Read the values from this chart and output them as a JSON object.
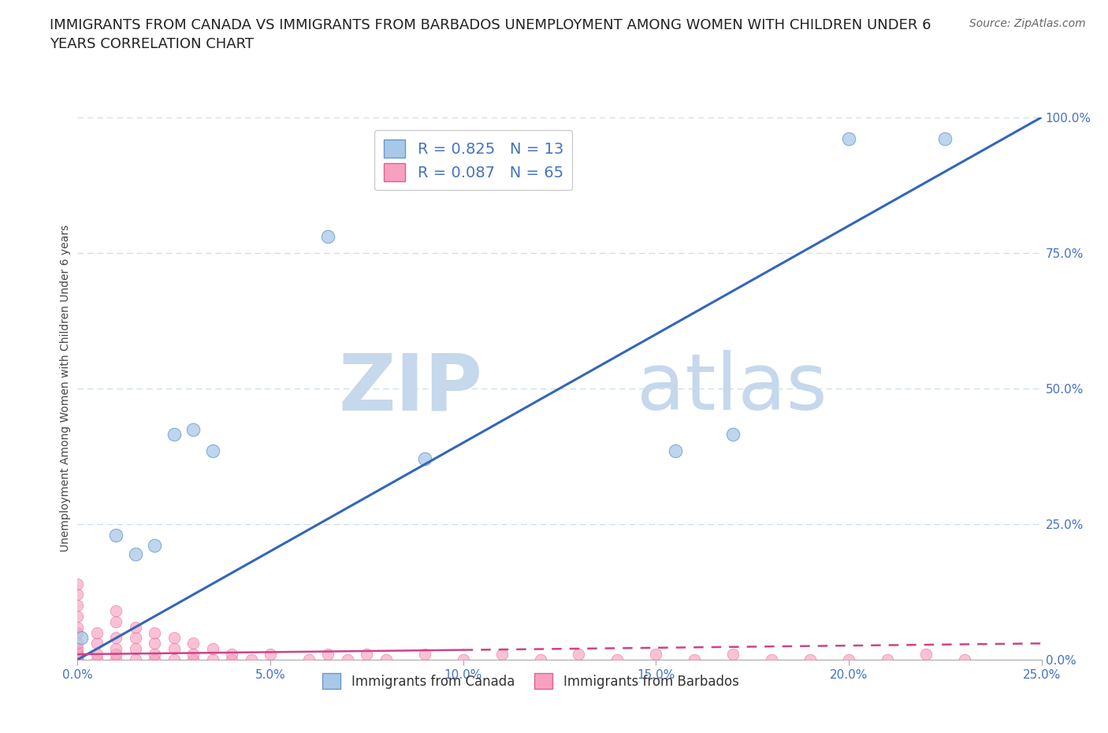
{
  "title": "IMMIGRANTS FROM CANADA VS IMMIGRANTS FROM BARBADOS UNEMPLOYMENT AMONG WOMEN WITH CHILDREN UNDER 6\nYEARS CORRELATION CHART",
  "source": "Source: ZipAtlas.com",
  "ylabel": "Unemployment Among Women with Children Under 6 years",
  "xlim": [
    0.0,
    0.25
  ],
  "ylim": [
    0.0,
    1.0
  ],
  "xticks": [
    0.0,
    0.05,
    0.1,
    0.15,
    0.2,
    0.25
  ],
  "yticks_right": [
    0.0,
    0.25,
    0.5,
    0.75,
    1.0
  ],
  "canada_R": 0.825,
  "canada_N": 13,
  "barbados_R": 0.087,
  "barbados_N": 65,
  "canada_color": "#a8c8e8",
  "canada_edge_color": "#6699cc",
  "barbados_color": "#f8a0c0",
  "barbados_edge_color": "#e06090",
  "trend_canada_color": "#3366bb",
  "trend_barbados_color": "#cc4488",
  "watermark_color": "#dce8f4",
  "grid_color": "#ccddee",
  "background_color": "#ffffff",
  "canada_x": [
    0.001,
    0.01,
    0.015,
    0.02,
    0.025,
    0.03,
    0.035,
    0.065,
    0.09,
    0.155,
    0.17,
    0.2,
    0.225
  ],
  "canada_y": [
    0.04,
    0.23,
    0.195,
    0.21,
    0.415,
    0.425,
    0.385,
    0.78,
    0.37,
    0.385,
    0.415,
    0.96,
    0.96
  ],
  "barbados_x": [
    0.0,
    0.0,
    0.0,
    0.0,
    0.0,
    0.0,
    0.0,
    0.0,
    0.0,
    0.0,
    0.0,
    0.0,
    0.0,
    0.0,
    0.0,
    0.005,
    0.005,
    0.005,
    0.005,
    0.01,
    0.01,
    0.01,
    0.01,
    0.01,
    0.01,
    0.015,
    0.015,
    0.015,
    0.015,
    0.02,
    0.02,
    0.02,
    0.02,
    0.025,
    0.025,
    0.025,
    0.03,
    0.03,
    0.03,
    0.035,
    0.035,
    0.04,
    0.04,
    0.045,
    0.05,
    0.06,
    0.065,
    0.07,
    0.075,
    0.08,
    0.09,
    0.1,
    0.11,
    0.12,
    0.13,
    0.14,
    0.15,
    0.16,
    0.17,
    0.18,
    0.19,
    0.2,
    0.21,
    0.22,
    0.23
  ],
  "barbados_y": [
    0.0,
    0.0,
    0.0,
    0.0,
    0.005,
    0.01,
    0.015,
    0.02,
    0.03,
    0.05,
    0.06,
    0.08,
    0.1,
    0.12,
    0.14,
    0.0,
    0.01,
    0.03,
    0.05,
    0.0,
    0.01,
    0.02,
    0.04,
    0.07,
    0.09,
    0.0,
    0.02,
    0.04,
    0.06,
    0.0,
    0.01,
    0.03,
    0.05,
    0.0,
    0.02,
    0.04,
    0.0,
    0.01,
    0.03,
    0.0,
    0.02,
    0.0,
    0.01,
    0.0,
    0.01,
    0.0,
    0.01,
    0.0,
    0.01,
    0.0,
    0.01,
    0.0,
    0.01,
    0.0,
    0.01,
    0.0,
    0.01,
    0.0,
    0.01,
    0.0,
    0.0,
    0.0,
    0.0,
    0.01,
    0.0
  ],
  "title_fontsize": 13,
  "axis_label_fontsize": 10,
  "tick_fontsize": 11,
  "legend_fontsize": 14,
  "watermark_fontsize": 72,
  "source_fontsize": 10
}
